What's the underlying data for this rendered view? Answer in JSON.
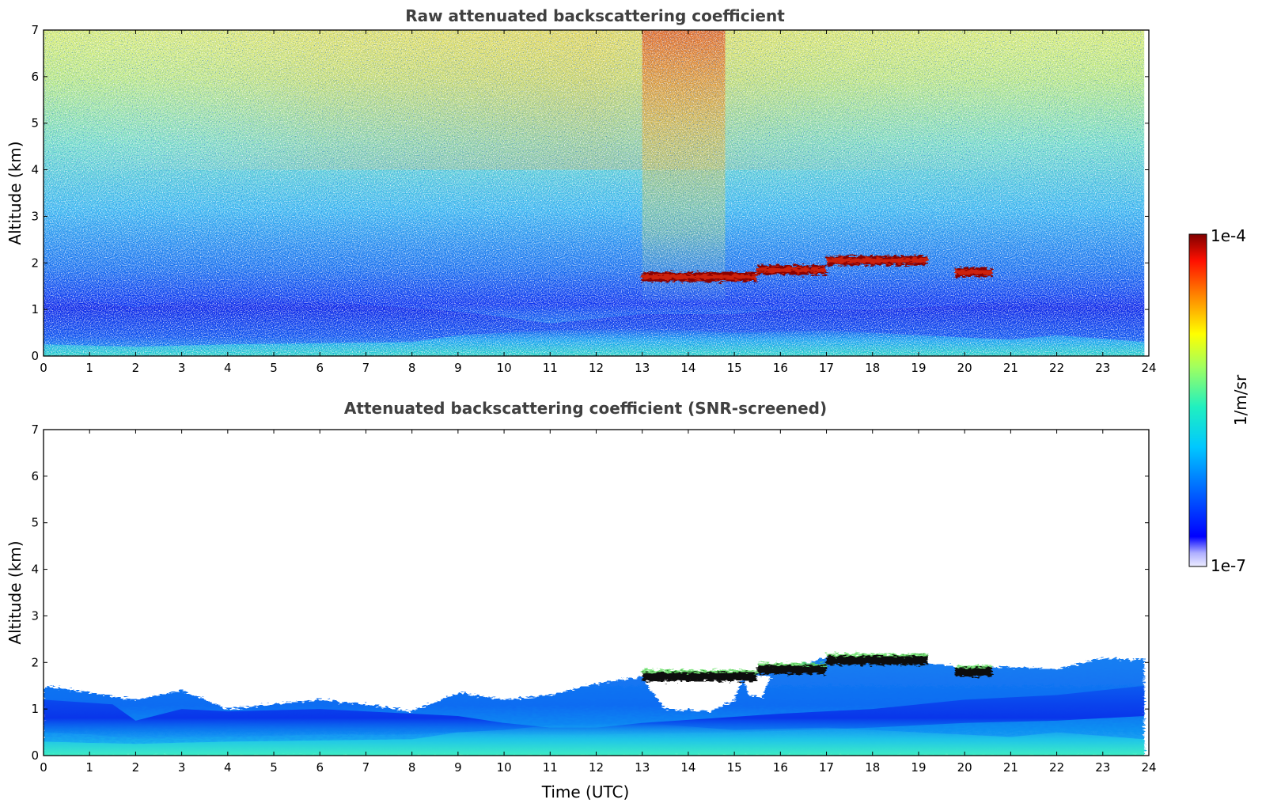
{
  "chart_data": [
    {
      "type": "heatmap",
      "title": "Raw attenuated backscattering coefficient",
      "xlabel": "",
      "ylabel": "Altitude (km)",
      "xlim": [
        0,
        24
      ],
      "ylim": [
        0,
        7
      ],
      "xticks": [
        "0",
        "1",
        "2",
        "3",
        "4",
        "5",
        "6",
        "7",
        "8",
        "9",
        "10",
        "11",
        "12",
        "13",
        "14",
        "15",
        "16",
        "17",
        "18",
        "19",
        "20",
        "21",
        "22",
        "23",
        "24"
      ],
      "yticks": [
        "0",
        "1",
        "2",
        "3",
        "4",
        "5",
        "6",
        "7"
      ],
      "data_extent_x": [
        0,
        23.9
      ],
      "features": {
        "boundary_layer_top_km": 1.0,
        "cloud_layer": [
          {
            "t_start": 13.0,
            "t_end": 15.5,
            "alt_km": 1.7
          },
          {
            "t_start": 15.5,
            "t_end": 17.0,
            "alt_km": 1.85
          },
          {
            "t_start": 17.0,
            "t_end": 19.2,
            "alt_km": 2.05
          },
          {
            "t_start": 19.8,
            "t_end": 20.6,
            "alt_km": 1.8
          }
        ],
        "enhanced_noise_window": [
          13.0,
          14.8
        ]
      }
    },
    {
      "type": "heatmap",
      "title": "Attenuated backscattering coefficient (SNR-screened)",
      "xlabel": "Time (UTC)",
      "ylabel": "Altitude (km)",
      "xlim": [
        0,
        24
      ],
      "ylim": [
        0,
        7
      ],
      "xticks": [
        "0",
        "1",
        "2",
        "3",
        "4",
        "5",
        "6",
        "7",
        "8",
        "9",
        "10",
        "11",
        "12",
        "13",
        "14",
        "15",
        "16",
        "17",
        "18",
        "19",
        "20",
        "21",
        "22",
        "23",
        "24"
      ],
      "yticks": [
        "0",
        "1",
        "2",
        "3",
        "4",
        "5",
        "6",
        "7"
      ],
      "data_extent_x": [
        0,
        23.9
      ],
      "features": {
        "screened_layer_top_km": [
          [
            0,
            1.5
          ],
          [
            2,
            1.2
          ],
          [
            3,
            1.4
          ],
          [
            4,
            1.0
          ],
          [
            5,
            1.1
          ],
          [
            6,
            1.2
          ],
          [
            7,
            1.1
          ],
          [
            8,
            0.95
          ],
          [
            9,
            1.35
          ],
          [
            10,
            1.2
          ],
          [
            11,
            1.3
          ],
          [
            12,
            1.55
          ],
          [
            13,
            1.7
          ],
          [
            15,
            1.75
          ],
          [
            16,
            1.85
          ],
          [
            17,
            2.1
          ],
          [
            18,
            2.15
          ],
          [
            19,
            2.0
          ],
          [
            20,
            1.9
          ],
          [
            21,
            1.9
          ],
          [
            22,
            1.85
          ],
          [
            23,
            2.1
          ],
          [
            23.9,
            2.05
          ]
        ],
        "cloud_layer_color": "#111111"
      }
    }
  ],
  "colorbar": {
    "label": "1/m/sr",
    "max_label": "1e-4",
    "min_label": "1e-7",
    "colormap": "jet",
    "colors": [
      "#ececff",
      "#b0b0ff",
      "#0000ff",
      "#0080ff",
      "#00e0e0",
      "#7fff7f",
      "#ffff00",
      "#ff8000",
      "#ff0000",
      "#800000"
    ]
  }
}
